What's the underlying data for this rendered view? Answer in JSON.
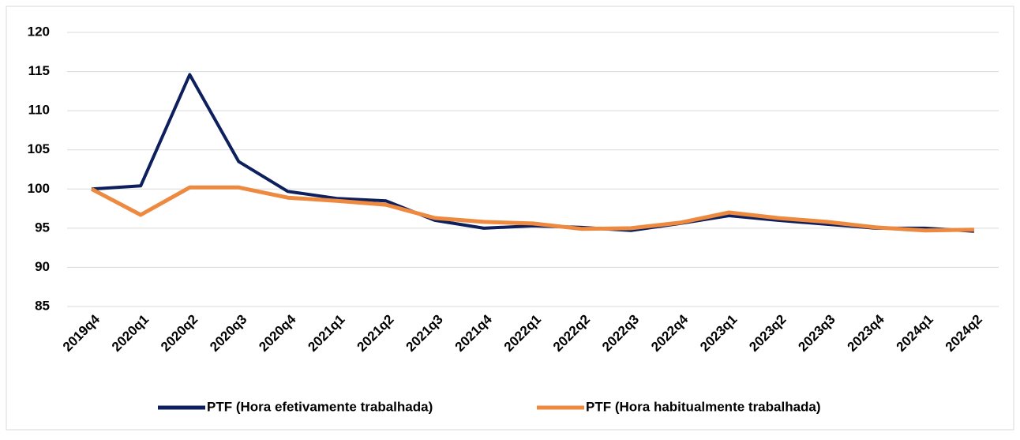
{
  "chart_data": {
    "type": "line",
    "categories": [
      "2019q4",
      "2020q1",
      "2020q2",
      "2020q3",
      "2020q4",
      "2021q1",
      "2021q2",
      "2021q3",
      "2021q4",
      "2022q1",
      "2022q2",
      "2022q3",
      "2022q4",
      "2023q1",
      "2023q2",
      "2023q3",
      "2023q4",
      "2024q1",
      "2024q2"
    ],
    "series": [
      {
        "name": "PTF (Hora efetivamente trabalhada)",
        "color": "#0d1f5c",
        "values": [
          100,
          100.4,
          114.6,
          103.5,
          99.7,
          98.8,
          98.5,
          96.0,
          95.0,
          95.3,
          95.1,
          94.7,
          95.6,
          96.6,
          96.0,
          95.5,
          95.0,
          95.0,
          94.6
        ]
      },
      {
        "name": "PTF (Hora habitualmente trabalhada)",
        "color": "#ed8a3f",
        "values": [
          100,
          96.7,
          100.2,
          100.2,
          98.9,
          98.5,
          98.0,
          96.3,
          95.8,
          95.6,
          94.9,
          95.0,
          95.7,
          97.0,
          96.3,
          95.8,
          95.1,
          94.7,
          94.8
        ]
      }
    ],
    "ylim": [
      85,
      120
    ],
    "yticks": [
      85,
      90,
      95,
      100,
      105,
      110,
      115,
      120
    ],
    "grid": true,
    "legend": "bottom"
  }
}
